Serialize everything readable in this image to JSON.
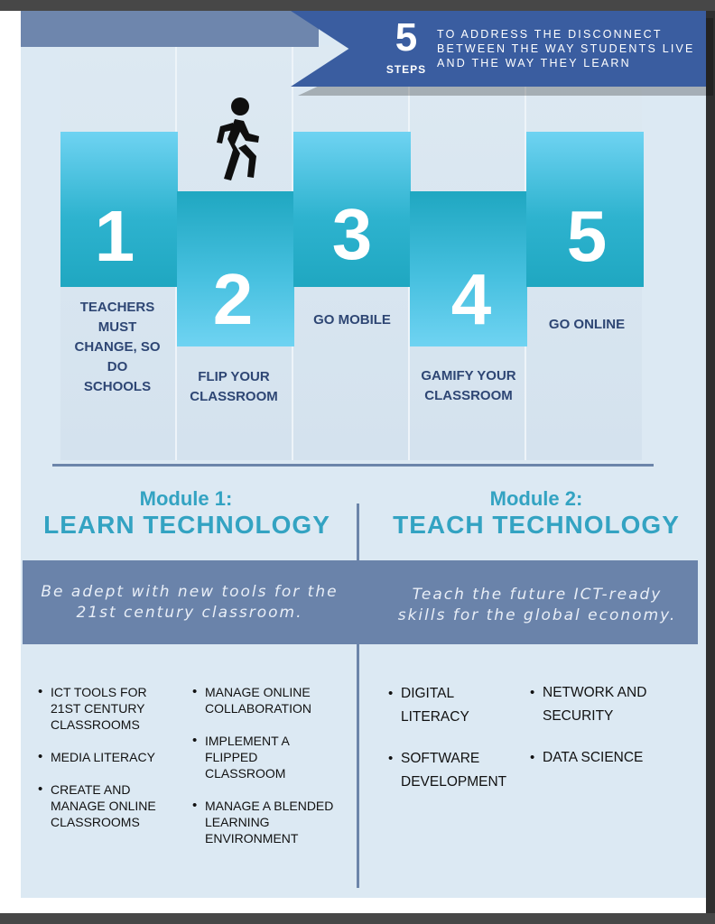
{
  "banner": {
    "number": "5",
    "steps_label": "STEPS",
    "text": "TO ADDRESS THE DISCONNECT BETWEEN THE WAY STUDENTS LIVE AND THE WAY THEY LEARN",
    "walker_icon": "walking-person-icon"
  },
  "steps": [
    {
      "number": "1",
      "label": "TEACHERS MUST CHANGE, SO DO SCHOOLS"
    },
    {
      "number": "2",
      "label": "FLIP YOUR CLASSROOM"
    },
    {
      "number": "3",
      "label": "GO MOBILE"
    },
    {
      "number": "4",
      "label": "GAMIFY YOUR CLASSROOM"
    },
    {
      "number": "5",
      "label": "GO ONLINE"
    }
  ],
  "modules": [
    {
      "title": "Module 1:",
      "subtitle": "LEARN TECHNOLOGY",
      "tagline": "Be adept with new tools for the 21st century classroom.",
      "items_left": [
        "ICT TOOLS FOR 21ST CENTURY CLASSROOMS",
        "MEDIA LITERACY",
        "CREATE AND MANAGE ONLINE CLASSROOMS"
      ],
      "items_right": [
        "MANAGE ONLINE COLLABORATION",
        "IMPLEMENT A FLIPPED CLASSROOM",
        "MANAGE A BLENDED LEARNING ENVIRONMENT"
      ]
    },
    {
      "title": "Module 2:",
      "subtitle": "TEACH TECHNOLOGY",
      "tagline": "Teach the future ICT-ready skills for the global economy.",
      "items_left": [
        "DIGITAL LITERACY",
        "SOFTWARE DEVELOPMENT"
      ],
      "items_right": [
        "NETWORK AND SECURITY",
        "DATA SCIENCE"
      ]
    }
  ],
  "colors": {
    "banner": "#3a5da0",
    "step_blocks": "#2eb3cf",
    "module_heading": "#33a3c2",
    "tagline_band": "#6a83aa",
    "step_labels": "#2e4674"
  }
}
